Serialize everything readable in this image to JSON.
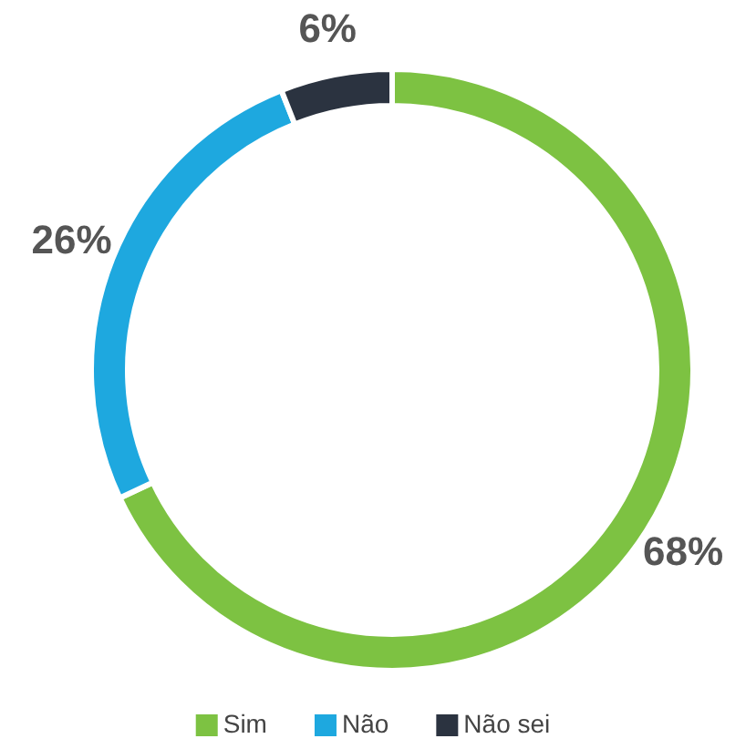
{
  "chart_data": {
    "type": "donut",
    "categories": [
      "Sim",
      "Não",
      "Não sei"
    ],
    "values": [
      68,
      26,
      6
    ],
    "colors": [
      "#7dc242",
      "#1ea8df",
      "#2b3340"
    ],
    "value_labels": [
      "68%",
      "26%",
      "6%"
    ],
    "legend": "bottom"
  }
}
